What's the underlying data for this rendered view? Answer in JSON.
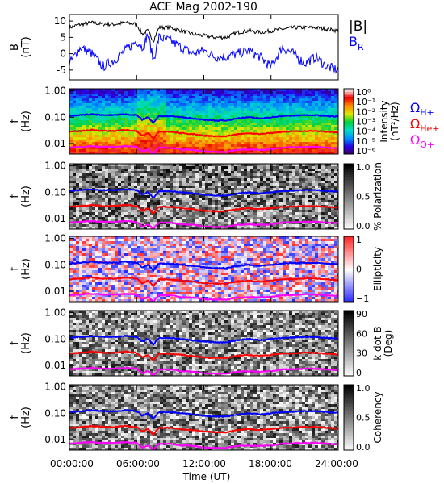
{
  "title": "ACE Mag 2002-190",
  "x_axis": {
    "label": "Time (UT)",
    "ticks": [
      "00:00:00",
      "06:00:00",
      "12:00:00",
      "18:00:00",
      "24:00:00"
    ],
    "range_hours": [
      0,
      24
    ]
  },
  "legend": {
    "b_total": "|B|",
    "b_r": "B",
    "b_r_sub": "R",
    "cyclotron": [
      {
        "symbol": "Ω",
        "sub": "H+",
        "color": "#0000ff"
      },
      {
        "symbol": "Ω",
        "sub": "He+",
        "color": "#ff0000"
      },
      {
        "symbol": "Ω",
        "sub": "O+",
        "color": "#ff00ff"
      }
    ]
  },
  "chart_data": [
    {
      "type": "line",
      "panel": "field",
      "ylabel": "B",
      "yunit": "(nT)",
      "ylim": [
        -8,
        12
      ],
      "yticks": [
        "10",
        "5",
        "0",
        "-5"
      ],
      "x": [
        0,
        1,
        2,
        3,
        4,
        5,
        6,
        6.5,
        7,
        7.5,
        8,
        9,
        10,
        11,
        12,
        13,
        14,
        15,
        16,
        17,
        18,
        19,
        20,
        21,
        22,
        23,
        24
      ],
      "series": [
        {
          "name": "|B|",
          "color": "#000000",
          "values": [
            8,
            9,
            9.5,
            9,
            9,
            9.5,
            9,
            6,
            7,
            4,
            8,
            8,
            7,
            6,
            5.5,
            5,
            5,
            6.5,
            7,
            6.5,
            7,
            7.5,
            8,
            8,
            8,
            7.5,
            7
          ]
        },
        {
          "name": "B_R",
          "color": "#0000ff",
          "values": [
            -3,
            2,
            0,
            -4,
            -2,
            1,
            4,
            2,
            6,
            -2,
            5,
            4,
            2,
            0,
            1,
            -1,
            -1,
            0,
            1,
            -1,
            -4,
            2,
            0,
            -3,
            -1,
            -4,
            -5
          ]
        }
      ]
    },
    {
      "type": "heatmap",
      "panel": "intensity",
      "ylabel": "f",
      "yunit": "(Hz)",
      "yscale": "log",
      "ylim": [
        0.004,
        1.2
      ],
      "yticks": [
        "1.00",
        "0.10",
        "0.01"
      ],
      "colorbar": {
        "label": "Intensity",
        "unit": "(nT²/Hz)",
        "ticks": [
          "10⁰",
          "10⁻¹",
          "10⁻²",
          "10⁻³",
          "10⁻⁴",
          "10⁻⁵",
          "10⁻⁶"
        ],
        "palette": "rainbow"
      }
    },
    {
      "type": "heatmap",
      "panel": "polarization",
      "ylabel": "f",
      "yunit": "(Hz)",
      "yscale": "log",
      "ylim": [
        0.004,
        1.2
      ],
      "yticks": [
        "1.00",
        "0.10",
        "0.01"
      ],
      "colorbar": {
        "label": "% Polarization",
        "unit": "",
        "ticks": [
          "1.0",
          "0.5",
          "0.0"
        ],
        "palette": "gray"
      }
    },
    {
      "type": "heatmap",
      "panel": "ellipticity",
      "ylabel": "f",
      "yunit": "(Hz)",
      "yscale": "log",
      "ylim": [
        0.004,
        1.2
      ],
      "yticks": [
        "1.00",
        "0.10",
        "0.01"
      ],
      "colorbar": {
        "label": "Ellipticity",
        "unit": "",
        "ticks": [
          "1",
          "0",
          "−1"
        ],
        "palette": "bwr"
      }
    },
    {
      "type": "heatmap",
      "panel": "kdotb",
      "ylabel": "f",
      "yunit": "(Hz)",
      "yscale": "log",
      "ylim": [
        0.004,
        1.2
      ],
      "yticks": [
        "1.00",
        "0.10",
        "0.01"
      ],
      "colorbar": {
        "label": "k dot B",
        "unit": "(Deg)",
        "ticks": [
          "90",
          "60",
          "30",
          "0"
        ],
        "palette": "gray"
      }
    },
    {
      "type": "heatmap",
      "panel": "coherency",
      "ylabel": "f",
      "yunit": "(Hz)",
      "yscale": "log",
      "ylim": [
        0.004,
        1.2
      ],
      "yticks": [
        "1.00",
        "0.10",
        "0.01"
      ],
      "colorbar": {
        "label": "Coherency",
        "unit": "",
        "ticks": [
          "1.0",
          "0.5",
          "0.0"
        ],
        "palette": "gray"
      }
    }
  ],
  "gyro_lines": {
    "x": [
      0,
      1,
      2,
      3,
      4,
      5,
      6,
      6.5,
      7,
      7.5,
      8,
      9,
      10,
      11,
      12,
      13,
      14,
      15,
      16,
      17,
      18,
      19,
      20,
      21,
      22,
      23,
      24
    ],
    "series": [
      {
        "name": "H+",
        "color": "#0000ff",
        "values": [
          0.11,
          0.12,
          0.13,
          0.12,
          0.12,
          0.13,
          0.12,
          0.08,
          0.1,
          0.06,
          0.11,
          0.11,
          0.1,
          0.09,
          0.08,
          0.075,
          0.075,
          0.09,
          0.1,
          0.09,
          0.1,
          0.11,
          0.115,
          0.12,
          0.12,
          0.11,
          0.105
        ]
      },
      {
        "name": "He+",
        "color": "#ff0000",
        "values": [
          0.028,
          0.03,
          0.033,
          0.03,
          0.03,
          0.033,
          0.03,
          0.02,
          0.025,
          0.015,
          0.028,
          0.028,
          0.025,
          0.023,
          0.02,
          0.019,
          0.019,
          0.023,
          0.025,
          0.023,
          0.025,
          0.028,
          0.029,
          0.03,
          0.03,
          0.028,
          0.026
        ]
      },
      {
        "name": "O+",
        "color": "#ff00ff",
        "values": [
          0.007,
          0.0075,
          0.008,
          0.0075,
          0.0075,
          0.008,
          0.0075,
          0.005,
          0.006,
          0.004,
          0.007,
          0.007,
          0.006,
          0.0058,
          0.005,
          0.0048,
          0.0048,
          0.0058,
          0.006,
          0.0058,
          0.006,
          0.007,
          0.0072,
          0.0075,
          0.0075,
          0.007,
          0.0066
        ]
      }
    ]
  }
}
